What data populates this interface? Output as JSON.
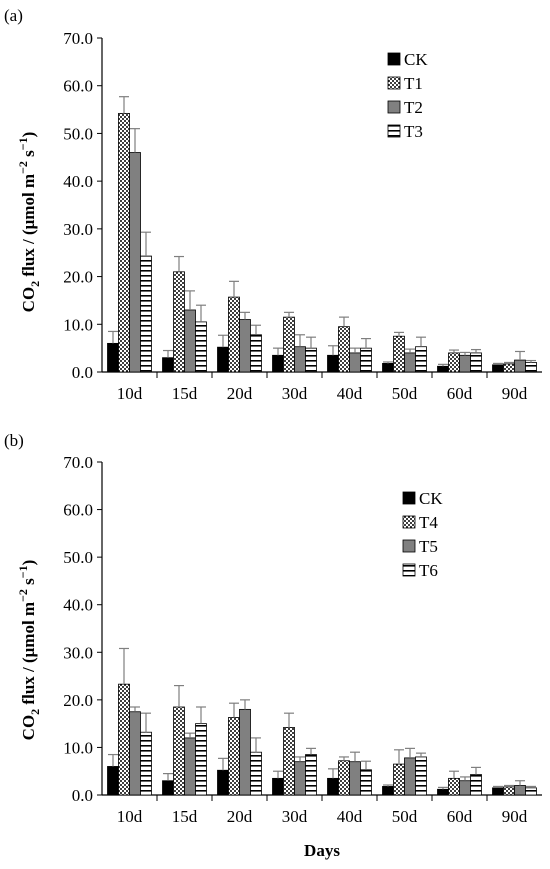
{
  "chart_data": [
    {
      "type": "bar",
      "panel_label": "(a)",
      "categories": [
        "10d",
        "15d",
        "20d",
        "30d",
        "40d",
        "50d",
        "60d",
        "90d"
      ],
      "ylabel_main": "CO",
      "ylabel_sub": "2",
      "ylabel_rest": " flux / (μmol m",
      "ylabel_sup": "−2",
      "ylabel_s": " s",
      "ylabel_sup2": "−1",
      "ylabel_end": ")",
      "xlabel": "",
      "ylim": [
        0,
        70
      ],
      "yticks": [
        "0.0",
        "10.0",
        "20.0",
        "30.0",
        "40.0",
        "50.0",
        "60.0",
        "70.0"
      ],
      "legend_position": "top-right",
      "series": [
        {
          "name": "CK",
          "pattern": "solid-black",
          "values": [
            6.0,
            3.0,
            5.2,
            3.5,
            3.5,
            1.8,
            1.2,
            1.5
          ],
          "errors": [
            2.5,
            1.5,
            2.5,
            1.5,
            2.0,
            0.3,
            0.4,
            0.3
          ]
        },
        {
          "name": "T1",
          "pattern": "dots",
          "values": [
            54.2,
            21.0,
            15.7,
            11.5,
            9.5,
            7.5,
            4.0,
            1.7
          ],
          "errors": [
            3.5,
            3.2,
            3.3,
            1.0,
            2.0,
            0.8,
            0.6,
            0.3
          ]
        },
        {
          "name": "T2",
          "pattern": "solid-gray",
          "values": [
            46.0,
            13.0,
            11.0,
            5.3,
            4.0,
            4.0,
            3.5,
            2.5
          ],
          "errors": [
            5.0,
            4.0,
            1.5,
            2.5,
            1.0,
            0.8,
            0.6,
            1.8
          ]
        },
        {
          "name": "T3",
          "pattern": "horizontal-lines",
          "values": [
            24.3,
            10.5,
            7.8,
            5.0,
            5.0,
            5.3,
            4.0,
            2.0
          ],
          "errors": [
            5.0,
            3.5,
            2.0,
            2.3,
            2.0,
            2.0,
            0.7,
            0.4
          ]
        }
      ]
    },
    {
      "type": "bar",
      "panel_label": "(b)",
      "categories": [
        "10d",
        "15d",
        "20d",
        "30d",
        "40d",
        "50d",
        "60d",
        "90d"
      ],
      "ylabel_main": "CO",
      "ylabel_sub": "2",
      "ylabel_rest": " flux / (μmol m",
      "ylabel_sup": "−2",
      "ylabel_s": " s",
      "ylabel_sup2": "−1",
      "ylabel_end": ")",
      "xlabel": "Days",
      "ylim": [
        0,
        70
      ],
      "yticks": [
        "0.0",
        "10.0",
        "20.0",
        "30.0",
        "40.0",
        "50.0",
        "60.0",
        "70.0"
      ],
      "legend_position": "top-right",
      "series": [
        {
          "name": "CK",
          "pattern": "solid-black",
          "values": [
            6.0,
            3.0,
            5.2,
            3.5,
            3.5,
            1.8,
            1.2,
            1.5
          ],
          "errors": [
            2.5,
            1.5,
            2.5,
            1.5,
            2.0,
            0.3,
            0.4,
            0.3
          ]
        },
        {
          "name": "T4",
          "pattern": "dots",
          "values": [
            23.3,
            18.5,
            16.3,
            14.2,
            7.2,
            6.5,
            3.5,
            1.7
          ],
          "errors": [
            7.5,
            4.5,
            3.0,
            3.0,
            0.8,
            3.0,
            1.5,
            0.3
          ]
        },
        {
          "name": "T5",
          "pattern": "solid-gray",
          "values": [
            17.5,
            12.0,
            18.0,
            7.0,
            7.0,
            7.8,
            3.0,
            2.0
          ],
          "errors": [
            1.0,
            1.0,
            2.0,
            1.0,
            2.0,
            2.0,
            0.8,
            1.0
          ]
        },
        {
          "name": "T6",
          "pattern": "horizontal-lines",
          "values": [
            13.2,
            15.0,
            9.0,
            8.5,
            5.3,
            8.0,
            4.3,
            1.5
          ],
          "errors": [
            4.0,
            3.5,
            3.0,
            1.3,
            1.8,
            0.8,
            1.5,
            0.3
          ]
        }
      ]
    }
  ]
}
